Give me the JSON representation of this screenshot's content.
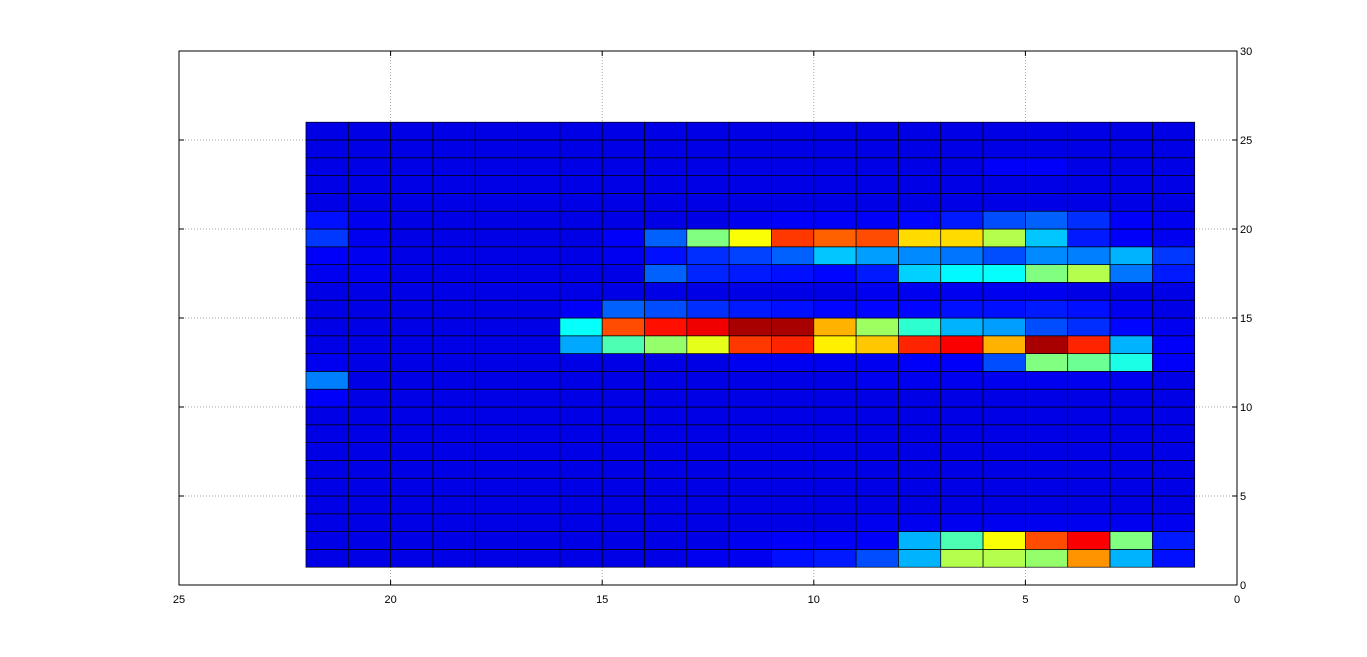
{
  "chart_data": {
    "type": "heatmap",
    "title": "",
    "xlabel": "",
    "ylabel": "",
    "xlim": [
      25,
      0
    ],
    "ylim": [
      0,
      30
    ],
    "x_reversed": true,
    "y_axis_side": "right",
    "grid": true,
    "colormap": "jet",
    "clim": [
      0,
      1
    ],
    "x_ticks": [
      25,
      20,
      15,
      10,
      5,
      0
    ],
    "y_ticks": [
      0,
      5,
      10,
      15,
      20,
      25,
      30
    ],
    "x_edges": [
      22,
      21,
      20,
      19,
      18,
      17,
      16,
      15,
      14,
      13,
      12,
      11,
      10,
      9,
      8,
      7,
      6,
      5,
      4,
      3,
      2,
      1
    ],
    "y_edges": [
      1,
      2,
      3,
      4,
      5,
      6,
      7,
      8,
      9,
      10,
      11,
      12,
      13,
      14,
      15,
      16,
      17,
      18,
      19,
      20,
      21,
      22,
      23,
      24,
      25,
      26
    ],
    "values": [
      [
        0.1,
        0.1,
        0.1,
        0.1,
        0.1,
        0.1,
        0.1,
        0.1,
        0.1,
        0.11,
        0.11,
        0.14,
        0.15,
        0.2,
        0.3,
        0.55,
        0.55,
        0.52,
        0.73,
        0.3,
        0.14
      ],
      [
        0.1,
        0.1,
        0.1,
        0.1,
        0.1,
        0.1,
        0.1,
        0.1,
        0.1,
        0.1,
        0.11,
        0.12,
        0.12,
        0.12,
        0.3,
        0.45,
        0.62,
        0.8,
        0.88,
        0.5,
        0.15
      ],
      [
        0.1,
        0.1,
        0.1,
        0.1,
        0.1,
        0.1,
        0.1,
        0.1,
        0.1,
        0.1,
        0.1,
        0.1,
        0.1,
        0.11,
        0.11,
        0.11,
        0.11,
        0.11,
        0.11,
        0.11,
        0.11
      ],
      [
        0.1,
        0.1,
        0.1,
        0.1,
        0.1,
        0.1,
        0.1,
        0.1,
        0.1,
        0.1,
        0.1,
        0.1,
        0.1,
        0.1,
        0.1,
        0.1,
        0.1,
        0.1,
        0.1,
        0.1,
        0.1
      ],
      [
        0.1,
        0.1,
        0.1,
        0.1,
        0.1,
        0.1,
        0.1,
        0.1,
        0.1,
        0.1,
        0.1,
        0.1,
        0.1,
        0.1,
        0.1,
        0.1,
        0.1,
        0.1,
        0.1,
        0.1,
        0.1
      ],
      [
        0.1,
        0.1,
        0.1,
        0.1,
        0.1,
        0.1,
        0.1,
        0.1,
        0.1,
        0.1,
        0.1,
        0.1,
        0.1,
        0.1,
        0.1,
        0.1,
        0.1,
        0.1,
        0.1,
        0.1,
        0.1
      ],
      [
        0.1,
        0.1,
        0.1,
        0.1,
        0.1,
        0.1,
        0.1,
        0.1,
        0.1,
        0.1,
        0.1,
        0.1,
        0.1,
        0.1,
        0.1,
        0.1,
        0.1,
        0.1,
        0.1,
        0.1,
        0.1
      ],
      [
        0.1,
        0.1,
        0.1,
        0.1,
        0.1,
        0.1,
        0.1,
        0.1,
        0.1,
        0.1,
        0.1,
        0.1,
        0.1,
        0.1,
        0.1,
        0.1,
        0.1,
        0.1,
        0.1,
        0.1,
        0.1
      ],
      [
        0.1,
        0.1,
        0.1,
        0.1,
        0.1,
        0.1,
        0.1,
        0.1,
        0.1,
        0.1,
        0.1,
        0.1,
        0.1,
        0.1,
        0.1,
        0.1,
        0.1,
        0.1,
        0.1,
        0.1,
        0.1
      ],
      [
        0.12,
        0.1,
        0.1,
        0.1,
        0.1,
        0.1,
        0.1,
        0.1,
        0.1,
        0.1,
        0.1,
        0.1,
        0.1,
        0.1,
        0.1,
        0.1,
        0.1,
        0.1,
        0.1,
        0.1,
        0.1
      ],
      [
        0.25,
        0.1,
        0.1,
        0.1,
        0.1,
        0.1,
        0.1,
        0.1,
        0.1,
        0.1,
        0.1,
        0.1,
        0.1,
        0.11,
        0.11,
        0.11,
        0.11,
        0.11,
        0.11,
        0.11,
        0.1
      ],
      [
        0.11,
        0.1,
        0.1,
        0.1,
        0.1,
        0.1,
        0.1,
        0.1,
        0.1,
        0.1,
        0.11,
        0.11,
        0.11,
        0.11,
        0.12,
        0.12,
        0.2,
        0.5,
        0.48,
        0.4,
        0.12
      ],
      [
        0.1,
        0.1,
        0.1,
        0.1,
        0.1,
        0.1,
        0.29,
        0.45,
        0.52,
        0.6,
        0.82,
        0.84,
        0.64,
        0.68,
        0.84,
        0.88,
        0.7,
        0.96,
        0.84,
        0.3,
        0.12
      ],
      [
        0.1,
        0.1,
        0.1,
        0.1,
        0.1,
        0.1,
        0.38,
        0.8,
        0.86,
        0.89,
        0.96,
        0.96,
        0.7,
        0.53,
        0.42,
        0.3,
        0.28,
        0.2,
        0.17,
        0.13,
        0.11
      ],
      [
        0.1,
        0.1,
        0.1,
        0.1,
        0.1,
        0.1,
        0.12,
        0.22,
        0.2,
        0.17,
        0.15,
        0.14,
        0.13,
        0.13,
        0.13,
        0.14,
        0.14,
        0.15,
        0.14,
        0.11,
        0.1
      ],
      [
        0.1,
        0.1,
        0.1,
        0.1,
        0.1,
        0.1,
        0.1,
        0.1,
        0.1,
        0.1,
        0.1,
        0.1,
        0.1,
        0.11,
        0.11,
        0.11,
        0.11,
        0.11,
        0.1,
        0.1,
        0.1
      ],
      [
        0.11,
        0.11,
        0.1,
        0.1,
        0.1,
        0.1,
        0.1,
        0.1,
        0.22,
        0.16,
        0.15,
        0.14,
        0.13,
        0.15,
        0.33,
        0.37,
        0.38,
        0.5,
        0.55,
        0.24,
        0.15
      ],
      [
        0.12,
        0.11,
        0.1,
        0.1,
        0.1,
        0.1,
        0.1,
        0.11,
        0.14,
        0.17,
        0.19,
        0.22,
        0.32,
        0.28,
        0.26,
        0.24,
        0.2,
        0.26,
        0.25,
        0.3,
        0.18
      ],
      [
        0.18,
        0.11,
        0.1,
        0.1,
        0.1,
        0.1,
        0.1,
        0.12,
        0.22,
        0.5,
        0.62,
        0.82,
        0.78,
        0.8,
        0.66,
        0.66,
        0.55,
        0.32,
        0.15,
        0.12,
        0.11
      ],
      [
        0.14,
        0.11,
        0.1,
        0.1,
        0.1,
        0.1,
        0.1,
        0.1,
        0.1,
        0.1,
        0.11,
        0.12,
        0.12,
        0.12,
        0.13,
        0.15,
        0.2,
        0.22,
        0.17,
        0.12,
        0.11
      ],
      [
        0.1,
        0.1,
        0.1,
        0.1,
        0.1,
        0.1,
        0.1,
        0.1,
        0.1,
        0.1,
        0.1,
        0.1,
        0.1,
        0.1,
        0.1,
        0.1,
        0.1,
        0.1,
        0.1,
        0.1,
        0.1
      ],
      [
        0.1,
        0.1,
        0.1,
        0.1,
        0.1,
        0.1,
        0.1,
        0.1,
        0.1,
        0.1,
        0.1,
        0.1,
        0.1,
        0.1,
        0.1,
        0.1,
        0.1,
        0.1,
        0.1,
        0.1,
        0.1
      ],
      [
        0.1,
        0.1,
        0.1,
        0.1,
        0.1,
        0.1,
        0.1,
        0.1,
        0.1,
        0.1,
        0.1,
        0.1,
        0.1,
        0.1,
        0.1,
        0.1,
        0.12,
        0.12,
        0.1,
        0.1,
        0.1
      ],
      [
        0.1,
        0.1,
        0.1,
        0.1,
        0.1,
        0.1,
        0.1,
        0.1,
        0.1,
        0.1,
        0.1,
        0.1,
        0.1,
        0.1,
        0.1,
        0.1,
        0.1,
        0.1,
        0.1,
        0.1,
        0.1
      ],
      [
        0.1,
        0.1,
        0.1,
        0.1,
        0.1,
        0.1,
        0.1,
        0.1,
        0.1,
        0.1,
        0.1,
        0.1,
        0.1,
        0.1,
        0.1,
        0.1,
        0.1,
        0.1,
        0.1,
        0.1,
        0.1
      ]
    ]
  }
}
